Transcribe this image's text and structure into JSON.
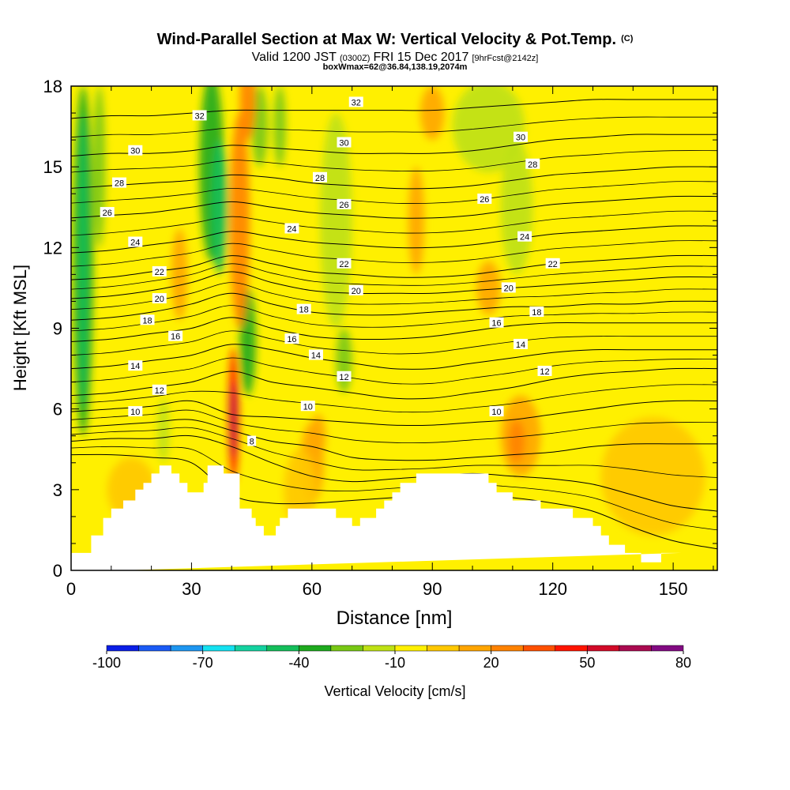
{
  "chart_data": {
    "type": "heatmap",
    "title": "Wind-Parallel Section at Max W: Vertical Velocity & Pot.Temp.",
    "title_units": "(C)",
    "subtitle_valid": "Valid 1200 JST",
    "subtitle_utc": "(0300Z)",
    "subtitle_date": "FRI 15 Dec 2017",
    "subtitle_fcst": "[9hrFcst@2142z]",
    "subtitle_box": "boxWmax=62@36.84,138.19,2074m",
    "xlabel": "Distance [nm]",
    "ylabel": "Height [Kft MSL]",
    "xlim": [
      0,
      161
    ],
    "ylim": [
      0,
      18
    ],
    "x_ticks": [
      0,
      30,
      60,
      90,
      120,
      150
    ],
    "y_ticks": [
      0,
      3,
      6,
      9,
      12,
      15,
      18
    ],
    "grid": false,
    "colorbar": {
      "label": "Vertical Velocity [cm/s]",
      "tick_labels": [
        "-100",
        "-70",
        "-40",
        "-10",
        "20",
        "50",
        "80"
      ],
      "levels": [
        -100,
        -90,
        -80,
        -70,
        -60,
        -50,
        -40,
        -30,
        -20,
        -10,
        0,
        10,
        20,
        30,
        40,
        50,
        60,
        70,
        80
      ],
      "colors": [
        "#0a1ee6",
        "#1a5af5",
        "#1e96f0",
        "#14e1f0",
        "#14d2a0",
        "#14be5a",
        "#1eaa1e",
        "#78c814",
        "#bee114",
        "#fff000",
        "#ffc800",
        "#ffa500",
        "#ff8200",
        "#ff5000",
        "#ff1400",
        "#d20a28",
        "#aa0a50",
        "#820a82"
      ]
    },
    "terrain_profile": {
      "x": [
        0,
        1,
        1,
        5,
        5,
        8,
        8,
        10,
        10,
        13,
        13,
        16,
        16,
        18,
        18,
        20,
        20,
        22,
        22,
        25,
        25,
        27,
        27,
        29,
        29,
        30,
        30,
        31,
        31,
        33,
        33,
        34,
        34,
        36,
        36,
        38,
        38,
        40,
        40,
        41,
        41,
        42,
        42,
        43,
        43,
        45,
        45,
        46,
        46,
        48,
        48,
        49,
        49,
        51,
        51,
        52,
        52,
        54,
        54,
        55,
        55,
        60,
        60,
        63,
        63,
        66,
        66,
        68,
        68,
        70,
        70,
        72,
        72,
        76,
        76,
        78,
        78,
        80,
        80,
        82,
        82,
        84,
        84,
        86,
        86,
        88,
        88,
        104,
        104,
        106,
        106,
        108,
        108,
        110,
        110,
        112,
        112,
        117,
        117,
        121,
        121,
        125,
        125,
        128,
        128,
        130,
        130,
        132,
        132,
        134,
        134,
        136,
        136,
        138,
        138,
        140,
        140,
        142,
        142,
        147,
        147,
        150,
        150,
        152,
        152,
        161
      ],
      "height": [
        0.65,
        0.65,
        0.65,
        0.65,
        1.3,
        1.3,
        1.95,
        1.95,
        2.3,
        2.3,
        2.6,
        2.6,
        3.0,
        3.0,
        3.25,
        3.25,
        3.6,
        3.6,
        3.9,
        3.9,
        3.6,
        3.6,
        3.25,
        3.25,
        2.9,
        2.9,
        2.9,
        2.9,
        2.9,
        2.9,
        3.25,
        3.25,
        3.9,
        3.9,
        3.9,
        3.9,
        3.6,
        3.6,
        3.6,
        3.6,
        3.6,
        3.6,
        2.3,
        2.3,
        2.3,
        2.3,
        1.95,
        1.95,
        1.65,
        1.65,
        1.3,
        1.3,
        1.3,
        1.3,
        1.65,
        1.65,
        1.95,
        1.95,
        2.3,
        2.3,
        2.3,
        2.3,
        2.3,
        2.3,
        2.3,
        2.3,
        1.95,
        1.95,
        1.95,
        1.95,
        1.65,
        1.65,
        1.95,
        1.95,
        2.3,
        2.3,
        2.6,
        2.6,
        2.9,
        2.9,
        3.25,
        3.25,
        3.25,
        3.25,
        3.6,
        3.6,
        3.6,
        3.6,
        3.25,
        3.25,
        2.9,
        2.9,
        2.9,
        2.9,
        2.6,
        2.6,
        2.6,
        2.6,
        2.3,
        2.3,
        2.3,
        2.3,
        1.95,
        1.95,
        1.95,
        1.95,
        1.65,
        1.65,
        1.3,
        1.3,
        0.95,
        0.95,
        0.95,
        0.95,
        0.65,
        0.65,
        0.65,
        0.65,
        0.3,
        0.3,
        0.65,
        0.65,
        0.65,
        0.65,
        0.65
      ]
    },
    "w_features": [
      {
        "x": 3,
        "y": 11.5,
        "rx": 2.5,
        "ry": 6.5,
        "w": -40
      },
      {
        "x": 3,
        "y": 11.5,
        "rx": 1.2,
        "ry": 5.5,
        "w": -50
      },
      {
        "x": 7,
        "y": 15,
        "rx": 1.5,
        "ry": 3,
        "w": -30
      },
      {
        "x": 35,
        "y": 15,
        "rx": 3,
        "ry": 3.5,
        "w": -35
      },
      {
        "x": 37,
        "y": 13.5,
        "rx": 2,
        "ry": 2.5,
        "w": -45
      },
      {
        "x": 44,
        "y": 8.5,
        "rx": 2,
        "ry": 2,
        "w": -35
      },
      {
        "x": 23,
        "y": 5.2,
        "rx": 1.5,
        "ry": 1.2,
        "w": -20
      },
      {
        "x": 47,
        "y": 16.5,
        "rx": 2,
        "ry": 1.5,
        "w": -25
      },
      {
        "x": 52,
        "y": 16.5,
        "rx": 1.5,
        "ry": 1.5,
        "w": -25
      },
      {
        "x": 66,
        "y": 13,
        "rx": 4,
        "ry": 4,
        "w": -15
      },
      {
        "x": 68,
        "y": 7.8,
        "rx": 2,
        "ry": 1.2,
        "w": -25
      },
      {
        "x": 104,
        "y": 16.5,
        "rx": 9,
        "ry": 1.7,
        "w": -15
      },
      {
        "x": 111,
        "y": 13.5,
        "rx": 4,
        "ry": 2.5,
        "w": -15
      },
      {
        "x": 44,
        "y": 17.5,
        "rx": 2,
        "ry": 1.5,
        "w": 25
      },
      {
        "x": 42,
        "y": 13,
        "rx": 2.5,
        "ry": 4,
        "w": 20
      },
      {
        "x": 40.5,
        "y": 5.8,
        "rx": 1.3,
        "ry": 2.5,
        "w": 45
      },
      {
        "x": 40.5,
        "y": 5.6,
        "rx": 0.7,
        "ry": 1.4,
        "w": 60
      },
      {
        "x": 27,
        "y": 11,
        "rx": 2,
        "ry": 1.7,
        "w": 15
      },
      {
        "x": 60,
        "y": 4,
        "rx": 3,
        "ry": 1.5,
        "w": 10
      },
      {
        "x": 61.5,
        "y": 5,
        "rx": 2,
        "ry": 0.8,
        "w": 15
      },
      {
        "x": 90,
        "y": 17,
        "rx": 3,
        "ry": 1,
        "w": 12
      },
      {
        "x": 86,
        "y": 13,
        "rx": 2,
        "ry": 2,
        "w": 15
      },
      {
        "x": 104,
        "y": 10.5,
        "rx": 3,
        "ry": 1,
        "w": 10
      },
      {
        "x": 112,
        "y": 5,
        "rx": 5,
        "ry": 1.5,
        "w": 12
      },
      {
        "x": 111,
        "y": 4.8,
        "rx": 2,
        "ry": 0.8,
        "w": 25
      },
      {
        "x": 145,
        "y": 3.5,
        "rx": 13,
        "ry": 2.2,
        "w": 8
      },
      {
        "x": 57,
        "y": 3,
        "rx": 4,
        "ry": 1.5,
        "w": 8
      },
      {
        "x": 15,
        "y": 3,
        "rx": 6,
        "ry": 1.2,
        "w": 5
      }
    ],
    "theta_lines": [
      {
        "value": 4,
        "y": [
          4.3,
          4.3,
          4.2,
          4.0,
          2.8,
          2.5,
          2.5,
          2.6,
          2.7,
          2.8,
          2.8,
          2.7,
          2.5,
          2.2,
          1.6,
          1.1,
          0.8
        ]
      },
      {
        "value": 6,
        "y": [
          4.8,
          4.9,
          4.9,
          5.0,
          4.6,
          4.0,
          3.5,
          3.3,
          3.4,
          3.5,
          3.6,
          3.5,
          3.4,
          3.2,
          2.8,
          2.4,
          2.2
        ]
      },
      {
        "value": 8,
        "y": [
          5.3,
          5.4,
          5.5,
          5.6,
          5.2,
          4.8,
          4.6,
          4.2,
          4.1,
          4.1,
          4.2,
          4.3,
          4.4,
          4.6,
          4.7,
          4.7,
          4.7
        ]
      },
      {
        "value": 10,
        "y": [
          5.9,
          6.0,
          6.1,
          6.3,
          5.8,
          5.7,
          5.6,
          5.5,
          5.4,
          5.4,
          5.5,
          5.6,
          5.8,
          6.0,
          6.2,
          6.3,
          6.3
        ]
      },
      {
        "value": 12,
        "y": [
          6.5,
          6.6,
          6.8,
          7.0,
          7.4,
          7.0,
          6.8,
          6.6,
          6.4,
          6.4,
          6.6,
          6.8,
          7.1,
          7.3,
          7.4,
          7.5,
          7.5
        ]
      },
      {
        "value": 14,
        "y": [
          7.5,
          7.6,
          7.8,
          8.0,
          8.4,
          8.2,
          7.9,
          7.7,
          7.5,
          7.5,
          7.7,
          7.9,
          8.1,
          8.2,
          8.2,
          8.2,
          8.2
        ]
      },
      {
        "value": 16,
        "y": [
          8.5,
          8.6,
          8.8,
          9.0,
          9.4,
          9.0,
          8.7,
          8.6,
          8.6,
          8.7,
          8.9,
          9.1,
          9.2,
          9.2,
          9.2,
          9.2,
          9.2
        ]
      },
      {
        "value": 18,
        "y": [
          9.3,
          9.4,
          9.6,
          9.9,
          10.3,
          9.9,
          9.6,
          9.5,
          9.5,
          9.6,
          9.7,
          9.8,
          9.8,
          9.9,
          9.9,
          10.0,
          10.0
        ]
      },
      {
        "value": 20,
        "y": [
          10.1,
          10.2,
          10.4,
          10.7,
          11.1,
          10.7,
          10.4,
          10.3,
          10.3,
          10.3,
          10.4,
          10.5,
          10.6,
          10.7,
          10.8,
          10.9,
          10.9
        ]
      },
      {
        "value": 22,
        "y": [
          10.8,
          10.9,
          11.1,
          11.3,
          11.7,
          11.4,
          11.1,
          11.0,
          10.9,
          10.9,
          11.0,
          11.2,
          11.4,
          11.5,
          11.6,
          11.7,
          11.7
        ]
      },
      {
        "value": 24,
        "y": [
          11.8,
          11.9,
          12.1,
          12.3,
          12.6,
          12.4,
          12.2,
          12.1,
          12.0,
          12.0,
          12.1,
          12.3,
          12.5,
          12.6,
          12.7,
          12.8,
          12.8
        ]
      },
      {
        "value": 26,
        "y": [
          13.1,
          13.2,
          13.3,
          13.5,
          13.7,
          13.5,
          13.3,
          13.2,
          13.1,
          13.1,
          13.2,
          13.4,
          13.6,
          13.7,
          13.8,
          13.9,
          13.9
        ]
      },
      {
        "value": 28,
        "y": [
          14.2,
          14.3,
          14.4,
          14.5,
          14.7,
          14.6,
          14.4,
          14.3,
          14.2,
          14.2,
          14.3,
          14.5,
          14.7,
          14.8,
          14.9,
          15.0,
          15.0
        ]
      },
      {
        "value": 30,
        "y": [
          15.4,
          15.5,
          15.5,
          15.6,
          15.8,
          15.7,
          15.6,
          15.5,
          15.5,
          15.5,
          15.6,
          15.8,
          16.0,
          16.1,
          16.2,
          16.2,
          16.2
        ]
      },
      {
        "value": 32,
        "y": [
          16.8,
          16.9,
          16.9,
          17.0,
          17.1,
          17.1,
          17.1,
          17.1,
          17.1,
          17.1,
          17.2,
          17.3,
          17.4,
          17.5,
          17.5,
          17.5,
          17.5
        ]
      }
    ],
    "theta_x": [
      0,
      10,
      20,
      30,
      40,
      50,
      60,
      70,
      80,
      90,
      100,
      110,
      120,
      130,
      140,
      150,
      161
    ],
    "contour_labels": [
      {
        "text": "32",
        "x": 32,
        "y": 16.9
      },
      {
        "text": "32",
        "x": 71,
        "y": 17.4
      },
      {
        "text": "30",
        "x": 16,
        "y": 15.6
      },
      {
        "text": "30",
        "x": 68,
        "y": 15.9
      },
      {
        "text": "30",
        "x": 112,
        "y": 16.1
      },
      {
        "text": "28",
        "x": 12,
        "y": 14.4
      },
      {
        "text": "28",
        "x": 62,
        "y": 14.6
      },
      {
        "text": "28",
        "x": 115,
        "y": 15.1
      },
      {
        "text": "26",
        "x": 9,
        "y": 13.3
      },
      {
        "text": "26",
        "x": 68,
        "y": 13.6
      },
      {
        "text": "26",
        "x": 103,
        "y": 13.8
      },
      {
        "text": "24",
        "x": 16,
        "y": 12.2
      },
      {
        "text": "24",
        "x": 55,
        "y": 12.7
      },
      {
        "text": "24",
        "x": 113,
        "y": 12.4
      },
      {
        "text": "22",
        "x": 22,
        "y": 11.1
      },
      {
        "text": "22",
        "x": 68,
        "y": 11.4
      },
      {
        "text": "22",
        "x": 120,
        "y": 11.4
      },
      {
        "text": "20",
        "x": 22,
        "y": 10.1
      },
      {
        "text": "20",
        "x": 71,
        "y": 10.4
      },
      {
        "text": "20",
        "x": 109,
        "y": 10.5
      },
      {
        "text": "18",
        "x": 19,
        "y": 9.3
      },
      {
        "text": "18",
        "x": 58,
        "y": 9.7
      },
      {
        "text": "18",
        "x": 116,
        "y": 9.6
      },
      {
        "text": "16",
        "x": 26,
        "y": 8.7
      },
      {
        "text": "16",
        "x": 55,
        "y": 8.6
      },
      {
        "text": "16",
        "x": 106,
        "y": 9.2
      },
      {
        "text": "14",
        "x": 16,
        "y": 7.6
      },
      {
        "text": "14",
        "x": 61,
        "y": 8.0
      },
      {
        "text": "14",
        "x": 112,
        "y": 8.4
      },
      {
        "text": "12",
        "x": 22,
        "y": 6.7
      },
      {
        "text": "12",
        "x": 68,
        "y": 7.2
      },
      {
        "text": "12",
        "x": 118,
        "y": 7.4
      },
      {
        "text": "10",
        "x": 16,
        "y": 5.9
      },
      {
        "text": "10",
        "x": 59,
        "y": 6.1
      },
      {
        "text": "10",
        "x": 106,
        "y": 5.9
      },
      {
        "text": "8",
        "x": 45,
        "y": 4.8
      }
    ]
  }
}
